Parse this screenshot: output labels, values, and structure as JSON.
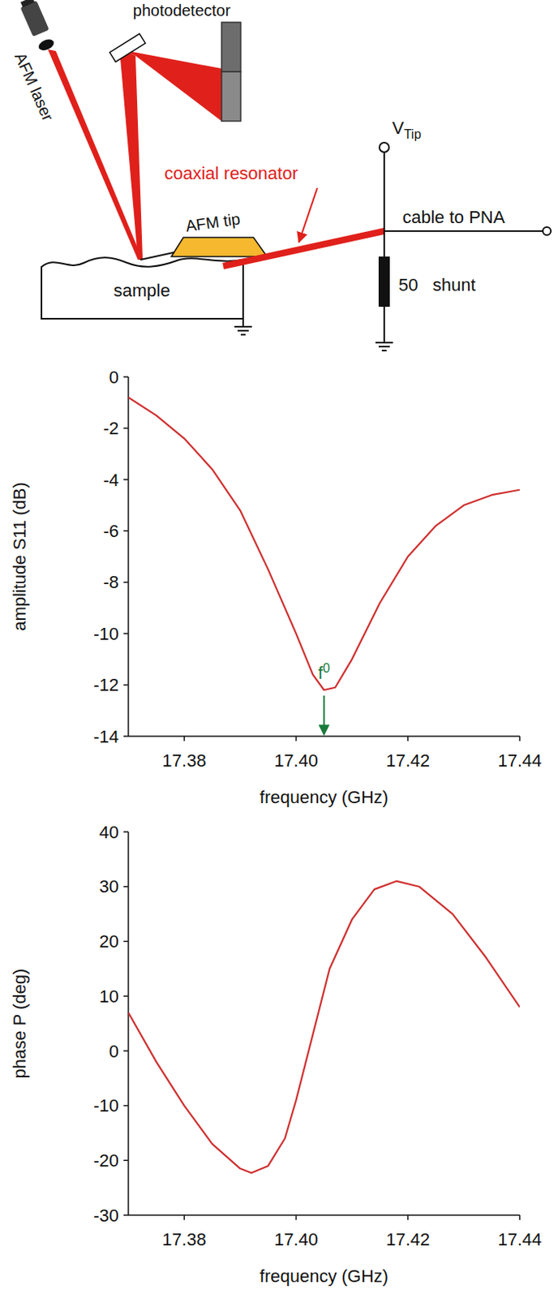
{
  "diagram": {
    "photodetector": "photodetector",
    "afm_laser": "AFM laser",
    "coaxial_resonator": "coaxial resonator",
    "afm_tip": "AFM tip",
    "sample": "sample",
    "v_tip": {
      "text": "V",
      "subscript": "Tip"
    },
    "cable": "cable to PNA",
    "shunt": "50   shunt"
  },
  "chart_data": [
    {
      "type": "line",
      "xlabel": "frequency (GHz)",
      "ylabel": "amplitude S11 (dB)",
      "color": "#d03030",
      "x": [
        17.37,
        17.375,
        17.38,
        17.385,
        17.39,
        17.395,
        17.4,
        17.403,
        17.405,
        17.407,
        17.41,
        17.415,
        17.42,
        17.425,
        17.43,
        17.435,
        17.44
      ],
      "values": [
        -0.8,
        -1.5,
        -2.4,
        -3.6,
        -5.2,
        -7.5,
        -10.0,
        -11.6,
        -12.2,
        -12.1,
        -11.0,
        -8.8,
        -7.0,
        -5.8,
        -5.0,
        -4.6,
        -4.4
      ],
      "xlim": [
        17.37,
        17.44
      ],
      "xticks": [
        17.38,
        {
          "value": 17.4,
          "label": "17.40"
        },
        17.42,
        17.44
      ],
      "ylim": [
        -14,
        0
      ],
      "yticks": [
        -14,
        -12,
        -10,
        -8,
        -6,
        -4,
        -2,
        0
      ],
      "annotations": [
        {
          "text": "f",
          "subscript": "0",
          "x": 17.405
        }
      ]
    },
    {
      "type": "line",
      "xlabel": "frequency (GHz)",
      "ylabel": "phase P (deg)",
      "color": "#d03030",
      "x": [
        17.37,
        17.375,
        17.38,
        17.385,
        17.39,
        17.392,
        17.395,
        17.398,
        17.4,
        17.403,
        17.406,
        17.41,
        17.414,
        17.418,
        17.422,
        17.428,
        17.434,
        17.44
      ],
      "values": [
        7,
        -2,
        -10,
        -17,
        -21.5,
        -22.3,
        -21,
        -16,
        -9,
        3,
        15,
        24,
        29.5,
        31,
        30,
        25,
        17,
        8
      ],
      "xlim": [
        17.37,
        17.44
      ],
      "xticks": [
        17.38,
        {
          "value": 17.4,
          "label": "17.40"
        },
        17.42,
        17.44
      ],
      "ylim": [
        -30,
        40
      ],
      "yticks": [
        -30,
        -20,
        -10,
        0,
        10,
        20,
        30,
        40
      ]
    }
  ]
}
